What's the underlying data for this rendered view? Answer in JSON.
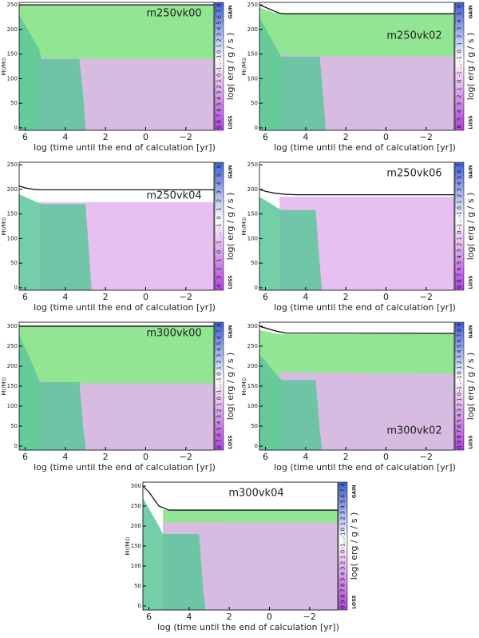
{
  "chart_data": [
    {
      "type": "kippenhahn",
      "title": "m250vk00",
      "label_corner": "upper right",
      "xlabel": "log (time until the end of calculation [yr])",
      "ylabel": "Mr/M⊙",
      "y2label": "log( erg / g / s )",
      "gain_label": "GAIN",
      "loss_label": "LOSS",
      "colorbar_labels": [
        "9",
        "8",
        "7",
        "6",
        "5",
        "4",
        "3",
        "2",
        "1",
        "0",
        "-1",
        "...",
        "-1",
        "0",
        "1",
        "2",
        "3",
        "4",
        "5",
        "6",
        "7",
        "8"
      ],
      "xlim": [
        6.3,
        -3.4
      ],
      "ylim": [
        -5,
        255
      ],
      "xticks": [
        6,
        4,
        2,
        0,
        {
          "value": -2,
          "label": "−2"
        }
      ],
      "yticks": [
        0,
        50,
        100,
        150,
        200,
        250
      ],
      "series": [
        {
          "color": "#7fe07f",
          "fill": true,
          "x": [
            6.3,
            -3.4
          ],
          "values": [
            250,
            250
          ]
        },
        {
          "color": "#e3b4ee",
          "fill": true,
          "x": [
            5.4,
            5,
            4,
            2,
            0,
            -2,
            -3.4
          ],
          "values": [
            145,
            142,
            141,
            140,
            140,
            140,
            140
          ]
        },
        {
          "color": "#5cc79a",
          "fill": true,
          "x": [
            6.3,
            5.3,
            5.2,
            3.3,
            3.1,
            3.0
          ],
          "values": [
            230,
            160,
            140,
            140,
            60,
            0
          ]
        },
        {
          "color": "#000000",
          "fill": false,
          "x": [
            6.3,
            -3.4
          ],
          "values": [
            250,
            250
          ]
        }
      ]
    },
    {
      "type": "kippenhahn",
      "title": "m250vk02",
      "label_corner": "middle right",
      "xlabel": "log (time until the end of calculation [yr])",
      "ylabel": "Mr/M⊙",
      "y2label": "log( erg / g / s )",
      "gain_label": "GAIN",
      "loss_label": "LOSS",
      "colorbar_labels": [
        "6",
        "5",
        "4",
        "3",
        "2",
        "1",
        "0",
        "-1",
        "...",
        "-1",
        "0",
        "1",
        "2",
        "3",
        "4",
        "5",
        "6"
      ],
      "xlim": [
        6.3,
        -3.4
      ],
      "ylim": [
        -5,
        255
      ],
      "xticks": [
        6,
        4,
        2,
        0,
        {
          "value": -2,
          "label": "−2"
        }
      ],
      "yticks": [
        0,
        50,
        100,
        150,
        200,
        250
      ],
      "series": [
        {
          "color": "#7fe07f",
          "fill": true,
          "x": [
            6.3,
            6,
            5.6,
            5.3,
            -3.4
          ],
          "values": [
            245,
            240,
            235,
            232,
            232
          ]
        },
        {
          "color": "#e3b4ee",
          "fill": true,
          "x": [
            5.2,
            5,
            4,
            -3.4
          ],
          "values": [
            150,
            148,
            146,
            146
          ]
        },
        {
          "color": "#5cc79a",
          "fill": true,
          "x": [
            6.3,
            5.3,
            5.2,
            3.3,
            3.1,
            3.0
          ],
          "values": [
            225,
            150,
            145,
            145,
            50,
            0
          ]
        },
        {
          "color": "#000000",
          "fill": false,
          "x": [
            6.3,
            6,
            5.6,
            5.3,
            5,
            -3.4
          ],
          "values": [
            250,
            245,
            238,
            233,
            232,
            232
          ]
        }
      ]
    },
    {
      "type": "kippenhahn",
      "title": "m250vk04",
      "label_corner": "middle right",
      "xlabel": "log (time until the end of calculation [yr])",
      "ylabel": "Mr/M⊙",
      "y2label": "log( erg / g / s )",
      "gain_label": "GAIN",
      "loss_label": "LOSS",
      "colorbar_labels": [
        "4",
        "3",
        "2",
        "1",
        "0",
        "-1",
        "...",
        "-1",
        "0",
        "1",
        "2",
        "3",
        "4",
        "5",
        "6"
      ],
      "xlim": [
        6.3,
        -3.4
      ],
      "ylim": [
        -5,
        255
      ],
      "xticks": [
        6,
        4,
        2,
        0,
        {
          "value": -2,
          "label": "−2"
        }
      ],
      "yticks": [
        0,
        50,
        100,
        150,
        200,
        250
      ],
      "series": [
        {
          "color": "#e3b4ee",
          "fill": true,
          "x": [
            5.3,
            5,
            -3.4
          ],
          "values": [
            175,
            174,
            174
          ]
        },
        {
          "color": "#5cc79a",
          "fill": true,
          "x": [
            6.3,
            5.3,
            5.2,
            3.0,
            2.8,
            2.7
          ],
          "values": [
            190,
            172,
            170,
            170,
            60,
            0
          ]
        },
        {
          "color": "#000000",
          "fill": false,
          "x": [
            6.3,
            6,
            5.6,
            5.2,
            5,
            4,
            -3.4
          ],
          "values": [
            207,
            203,
            200,
            199,
            199,
            199,
            199
          ]
        }
      ]
    },
    {
      "type": "kippenhahn",
      "title": "m250vk06",
      "label_corner": "upper right",
      "xlabel": "log (time until the end of calculation [yr])",
      "ylabel": "Mr/M⊙",
      "y2label": "log( erg / g / s )",
      "gain_label": "GAIN",
      "loss_label": "LOSS",
      "colorbar_labels": [
        "9",
        "8",
        "7",
        "6",
        "5",
        "4",
        "3",
        "2",
        "1",
        "0",
        "-1",
        "...",
        "-1",
        "0",
        "1",
        "2",
        "3",
        "4",
        "5",
        "6",
        "7"
      ],
      "xlim": [
        6.3,
        -3.4
      ],
      "ylim": [
        -5,
        255
      ],
      "xticks": [
        6,
        4,
        2,
        0,
        {
          "value": -2,
          "label": "−2"
        }
      ],
      "yticks": [
        0,
        50,
        100,
        150,
        200,
        250
      ],
      "series": [
        {
          "color": "#e3b4ee",
          "fill": true,
          "x": [
            5.3,
            -3.4
          ],
          "values": [
            185,
            185
          ]
        },
        {
          "color": "#5cc79a",
          "fill": true,
          "x": [
            6.3,
            5.3,
            5.2,
            3.5,
            3.3,
            3.2
          ],
          "values": [
            185,
            160,
            158,
            158,
            50,
            0
          ]
        },
        {
          "color": "#000000",
          "fill": false,
          "x": [
            6.3,
            6,
            5.5,
            5,
            4.5,
            -3.4
          ],
          "values": [
            200,
            196,
            192,
            190,
            189,
            189
          ]
        }
      ]
    },
    {
      "type": "kippenhahn",
      "title": "m300vk00",
      "label_corner": "upper right",
      "xlabel": "log (time until the end of calculation [yr])",
      "ylabel": "Mr/M⊙",
      "y2label": "log( erg / g / s )",
      "gain_label": "GAIN",
      "loss_label": "LOSS",
      "colorbar_labels": [
        "8",
        "7",
        "6",
        "5",
        "4",
        "3",
        "2",
        "1",
        "0",
        "-1",
        "...",
        "-1",
        "0",
        "1",
        "2",
        "3",
        "4",
        "5",
        "6",
        "7",
        "8"
      ],
      "xlim": [
        6.3,
        -3.4
      ],
      "ylim": [
        -10,
        310
      ],
      "xticks": [
        6,
        4,
        2,
        0,
        {
          "value": -2,
          "label": "−2"
        }
      ],
      "yticks": [
        0,
        50,
        100,
        150,
        200,
        250,
        300
      ],
      "series": [
        {
          "color": "#7fe07f",
          "fill": true,
          "x": [
            6.3,
            -3.4
          ],
          "values": [
            300,
            300
          ]
        },
        {
          "color": "#e3b4ee",
          "fill": true,
          "x": [
            5.3,
            5,
            4,
            -3.4
          ],
          "values": [
            165,
            160,
            158,
            157
          ]
        },
        {
          "color": "#5cc79a",
          "fill": true,
          "x": [
            6.3,
            5.3,
            5.2,
            3.3,
            3.1,
            3.0
          ],
          "values": [
            280,
            165,
            160,
            160,
            40,
            0
          ]
        },
        {
          "color": "#000000",
          "fill": false,
          "x": [
            6.3,
            -3.4
          ],
          "values": [
            300,
            300
          ]
        }
      ]
    },
    {
      "type": "kippenhahn",
      "title": "m300vk02",
      "label_corner": "lower right",
      "xlabel": "log (time until the end of calculation [yr])",
      "ylabel": "Mr/M⊙",
      "y2label": "log( erg / g / s )",
      "gain_label": "GAIN",
      "loss_label": "LOSS",
      "colorbar_labels": [
        "0",
        "9",
        "8",
        "7",
        "6",
        "5",
        "4",
        "3",
        "2",
        "1",
        "0",
        "-1",
        "...",
        "-1",
        "0",
        "1",
        "2",
        "3",
        "4",
        "5",
        "6",
        "7",
        "8",
        "9"
      ],
      "xlim": [
        6.3,
        -3.4
      ],
      "ylim": [
        -10,
        310
      ],
      "xticks": [
        6,
        4,
        2,
        0,
        {
          "value": -2,
          "label": "−2"
        }
      ],
      "yticks": [
        0,
        50,
        100,
        150,
        200,
        250,
        300
      ],
      "series": [
        {
          "color": "#7fe07f",
          "fill": true,
          "x": [
            6.3,
            5.3,
            -3.4
          ],
          "values": [
            290,
            280,
            280
          ]
        },
        {
          "color": "#e3b4ee",
          "fill": true,
          "x": [
            5.3,
            -3.4
          ],
          "values": [
            185,
            180
          ]
        },
        {
          "color": "#5cc79a",
          "fill": true,
          "x": [
            6.3,
            5.3,
            5.2,
            3.5,
            3.3,
            3.2
          ],
          "values": [
            230,
            170,
            165,
            165,
            40,
            0
          ]
        },
        {
          "color": "#000000",
          "fill": false,
          "x": [
            6.3,
            5.5,
            5,
            -3.4
          ],
          "values": [
            300,
            288,
            283,
            282
          ]
        }
      ]
    },
    {
      "type": "kippenhahn",
      "title": "m300vk04",
      "label_corner": "upper center",
      "xlabel": "log (time until the end of calculation [yr])",
      "ylabel": "Mr/M⊙",
      "y2label": "log( erg / g / s )",
      "gain_label": "GAIN",
      "loss_label": "LOSS",
      "colorbar_labels": [
        "0",
        "9",
        "8",
        "7",
        "6",
        "5",
        "4",
        "3",
        "2",
        "1",
        "0",
        "-1",
        "...",
        "-1",
        "0",
        "1",
        "2",
        "3",
        "4",
        "5",
        "6",
        "7",
        "8"
      ],
      "xlim": [
        6.3,
        -3.4
      ],
      "ylim": [
        -10,
        310
      ],
      "xticks": [
        6,
        4,
        2,
        0,
        {
          "value": -2,
          "label": "−2"
        }
      ],
      "yticks": [
        0,
        50,
        100,
        150,
        200,
        250,
        300
      ],
      "series": [
        {
          "color": "#7fe07f",
          "fill": true,
          "x": [
            5.3,
            -3.4
          ],
          "values": [
            240,
            240
          ]
        },
        {
          "color": "#e3b4ee",
          "fill": true,
          "x": [
            5.3,
            -3.4
          ],
          "values": [
            210,
            208
          ]
        },
        {
          "color": "#5cc79a",
          "fill": true,
          "x": [
            6.3,
            5.5,
            5.3,
            3.5,
            3.3,
            3.2
          ],
          "values": [
            270,
            200,
            180,
            180,
            40,
            0
          ]
        },
        {
          "color": "#000000",
          "fill": false,
          "x": [
            6.3,
            6,
            5.5,
            5,
            -3.4
          ],
          "values": [
            300,
            285,
            250,
            240,
            240
          ]
        }
      ]
    }
  ]
}
